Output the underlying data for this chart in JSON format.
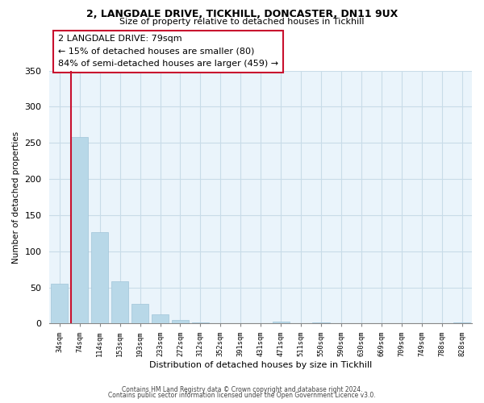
{
  "title1": "2, LANGDALE DRIVE, TICKHILL, DONCASTER, DN11 9UX",
  "title2": "Size of property relative to detached houses in Tickhill",
  "xlabel": "Distribution of detached houses by size in Tickhill",
  "ylabel": "Number of detached properties",
  "bar_color": "#b8d8e8",
  "bar_edge_color": "#a0c4d8",
  "highlight_color": "#c8102e",
  "property_label": "2 LANGDALE DRIVE: 79sqm",
  "annotation1": "← 15% of detached houses are smaller (80)",
  "annotation2": "84% of semi-detached houses are larger (459) →",
  "bin_labels": [
    "34sqm",
    "74sqm",
    "114sqm",
    "153sqm",
    "193sqm",
    "233sqm",
    "272sqm",
    "312sqm",
    "352sqm",
    "391sqm",
    "431sqm",
    "471sqm",
    "511sqm",
    "550sqm",
    "590sqm",
    "630sqm",
    "669sqm",
    "709sqm",
    "749sqm",
    "788sqm",
    "828sqm"
  ],
  "bar_heights": [
    55,
    258,
    126,
    58,
    27,
    13,
    5,
    2,
    0,
    0,
    0,
    3,
    0,
    2,
    0,
    0,
    0,
    0,
    0,
    0,
    2
  ],
  "ylim": [
    0,
    350
  ],
  "yticks": [
    0,
    50,
    100,
    150,
    200,
    250,
    300,
    350
  ],
  "footer1": "Contains HM Land Registry data © Crown copyright and database right 2024.",
  "footer2": "Contains public sector information licensed under the Open Government Licence v3.0.",
  "grid_color": "#c8dce8",
  "bg_color": "#eaf4fb"
}
